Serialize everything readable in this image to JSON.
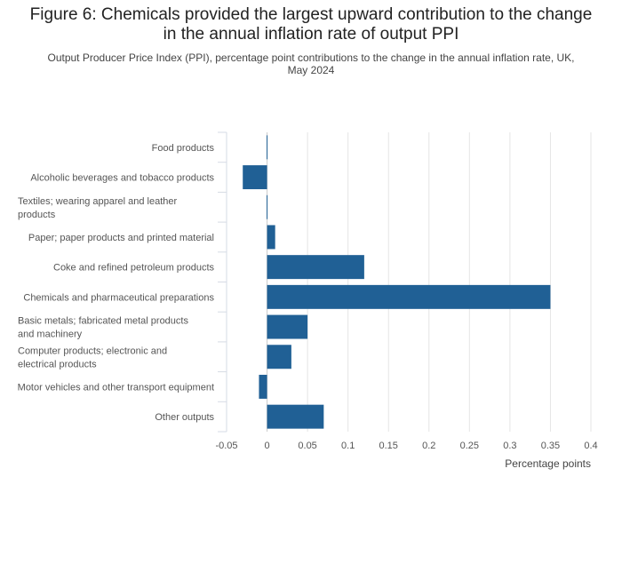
{
  "header": {
    "title": "Figure 6: Chemicals provided the largest upward contribution to the change\nin the annual inflation rate of output PPI",
    "subtitle": "Output Producer Price Index (PPI), percentage point contributions to the change in the annual inflation rate, UK,\nMay 2024"
  },
  "chart_data": {
    "type": "bar",
    "orientation": "horizontal",
    "categories": [
      "Food products",
      "Alcoholic beverages and tobacco products",
      "Textiles; wearing apparel and leather products",
      "Paper; paper products and printed material",
      "Coke and refined petroleum products",
      "Chemicals and pharmaceutical preparations",
      "Basic metals; fabricated metal products and machinery",
      "Computer products; electronic and electrical products",
      "Motor vehicles and other transport equipment",
      "Other outputs"
    ],
    "values": [
      0.0,
      -0.03,
      0.0,
      0.01,
      0.12,
      0.35,
      0.05,
      0.03,
      -0.01,
      0.07
    ],
    "xlabel": "Percentage points",
    "ylabel": "",
    "xlim": [
      -0.05,
      0.4
    ],
    "xticks": [
      -0.05,
      0,
      0.05,
      0.1,
      0.15,
      0.2,
      0.25,
      0.3,
      0.35,
      0.4
    ],
    "xtick_labels": [
      "-0.05",
      "0",
      "0.05",
      "0.1",
      "0.15",
      "0.2",
      "0.25",
      "0.3",
      "0.35",
      "0.4"
    ],
    "grid": true,
    "bar_color": "#206095"
  }
}
